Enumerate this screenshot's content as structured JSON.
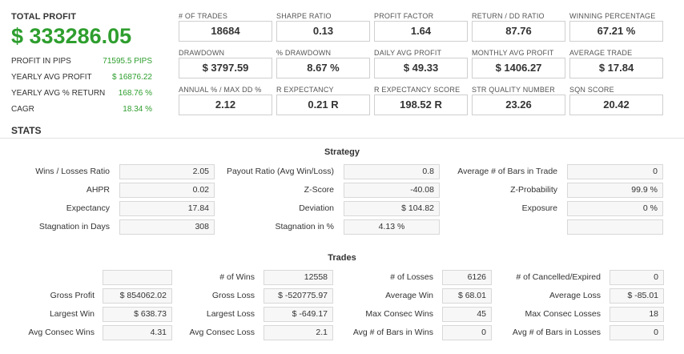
{
  "summary": {
    "total_profit_label": "TOTAL PROFIT",
    "total_profit_value": "$ 333286.05",
    "rows": [
      {
        "label": "PROFIT IN PIPS",
        "value": "71595.5 PIPS"
      },
      {
        "label": "YEARLY AVG PROFIT",
        "value": "$ 16876.22"
      },
      {
        "label": "YEARLY AVG % RETURN",
        "value": "168.76 %"
      },
      {
        "label": "CAGR",
        "value": "18.34 %"
      }
    ]
  },
  "metrics": [
    [
      {
        "label": "# OF TRADES",
        "value": "18684"
      },
      {
        "label": "SHARPE RATIO",
        "value": "0.13"
      },
      {
        "label": "PROFIT FACTOR",
        "value": "1.64"
      },
      {
        "label": "RETURN / DD RATIO",
        "value": "87.76"
      },
      {
        "label": "WINNING PERCENTAGE",
        "value": "67.21 %"
      }
    ],
    [
      {
        "label": "DRAWDOWN",
        "value": "$ 3797.59"
      },
      {
        "label": "% DRAWDOWN",
        "value": "8.67 %"
      },
      {
        "label": "DAILY AVG PROFIT",
        "value": "$ 49.33"
      },
      {
        "label": "MONTHLY AVG PROFIT",
        "value": "$ 1406.27"
      },
      {
        "label": "AVERAGE TRADE",
        "value": "$ 17.84"
      }
    ],
    [
      {
        "label": "ANNUAL % / MAX DD %",
        "value": "2.12"
      },
      {
        "label": "R EXPECTANCY",
        "value": "0.21 R"
      },
      {
        "label": "R EXPECTANCY SCORE",
        "value": "198.52 R"
      },
      {
        "label": "STR QUALITY NUMBER",
        "value": "23.26"
      },
      {
        "label": "SQN SCORE",
        "value": "20.42"
      }
    ]
  ],
  "stats_title": "STATS",
  "strategy": {
    "title": "Strategy",
    "rows": [
      [
        {
          "label": "Wins / Losses Ratio",
          "value": "2.05"
        },
        {
          "label": "Payout Ratio (Avg Win/Loss)",
          "value": "0.8"
        },
        {
          "label": "Average # of Bars in Trade",
          "value": "0"
        }
      ],
      [
        {
          "label": "AHPR",
          "value": "0.02"
        },
        {
          "label": "Z-Score",
          "value": "-40.08"
        },
        {
          "label": "Z-Probability",
          "value": "99.9 %"
        }
      ],
      [
        {
          "label": "Expectancy",
          "value": "17.84"
        },
        {
          "label": "Deviation",
          "value": "$ 104.82"
        },
        {
          "label": "Exposure",
          "value": "0 %"
        }
      ],
      [
        {
          "label": "Stagnation in Days",
          "value": "308"
        },
        {
          "label": "Stagnation in %",
          "value": "4.13 %"
        },
        {
          "label": "",
          "value": ""
        }
      ]
    ]
  },
  "trades": {
    "title": "Trades",
    "rows": [
      [
        {
          "label": "",
          "value": ""
        },
        {
          "label": "# of Wins",
          "value": "12558"
        },
        {
          "label": "# of Losses",
          "value": "6126"
        },
        {
          "label": "# of Cancelled/Expired",
          "value": "0"
        }
      ],
      [
        {
          "label": "Gross Profit",
          "value": "$ 854062.02"
        },
        {
          "label": "Gross Loss",
          "value": "$ -520775.97"
        },
        {
          "label": "Average Win",
          "value": "$ 68.01"
        },
        {
          "label": "Average Loss",
          "value": "$ -85.01"
        }
      ],
      [
        {
          "label": "Largest Win",
          "value": "$ 638.73"
        },
        {
          "label": "Largest Loss",
          "value": "$ -649.17"
        },
        {
          "label": "Max Consec Wins",
          "value": "45"
        },
        {
          "label": "Max Consec Losses",
          "value": "18"
        }
      ],
      [
        {
          "label": "Avg Consec Wins",
          "value": "4.31"
        },
        {
          "label": "Avg Consec Loss",
          "value": "2.1"
        },
        {
          "label": "Avg # of Bars in Wins",
          "value": "0"
        },
        {
          "label": "Avg # of Bars in Losses",
          "value": "0"
        }
      ]
    ]
  }
}
